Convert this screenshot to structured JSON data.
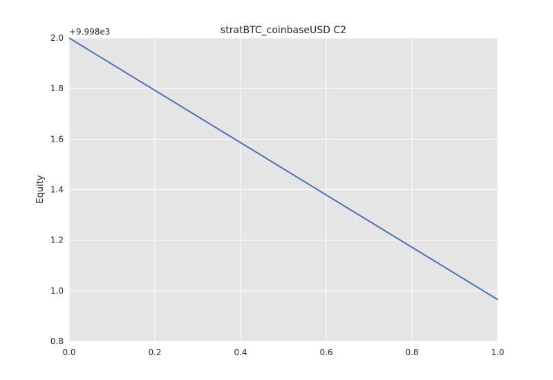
{
  "chart_data": {
    "type": "line",
    "title": "stratBTC_coinbaseUSD C2",
    "xlabel": "",
    "ylabel": "Equity",
    "y_offset_label": "+9.998e3",
    "xlim": [
      0.0,
      1.0
    ],
    "ylim": [
      0.8,
      2.0
    ],
    "x_ticks": [
      "0.0",
      "0.2",
      "0.4",
      "0.6",
      "0.8",
      "1.0"
    ],
    "y_ticks": [
      "0.8",
      "1.0",
      "1.2",
      "1.4",
      "1.6",
      "1.8",
      "2.0"
    ],
    "grid": true,
    "series": [
      {
        "x": [
          0.0,
          1.0
        ],
        "y": [
          2.0,
          0.965
        ],
        "color": "#4c72b0"
      }
    ]
  },
  "colors": {
    "plot_background": "#e5e5e5",
    "grid": "#ffffff",
    "line": "#4c72b0"
  }
}
